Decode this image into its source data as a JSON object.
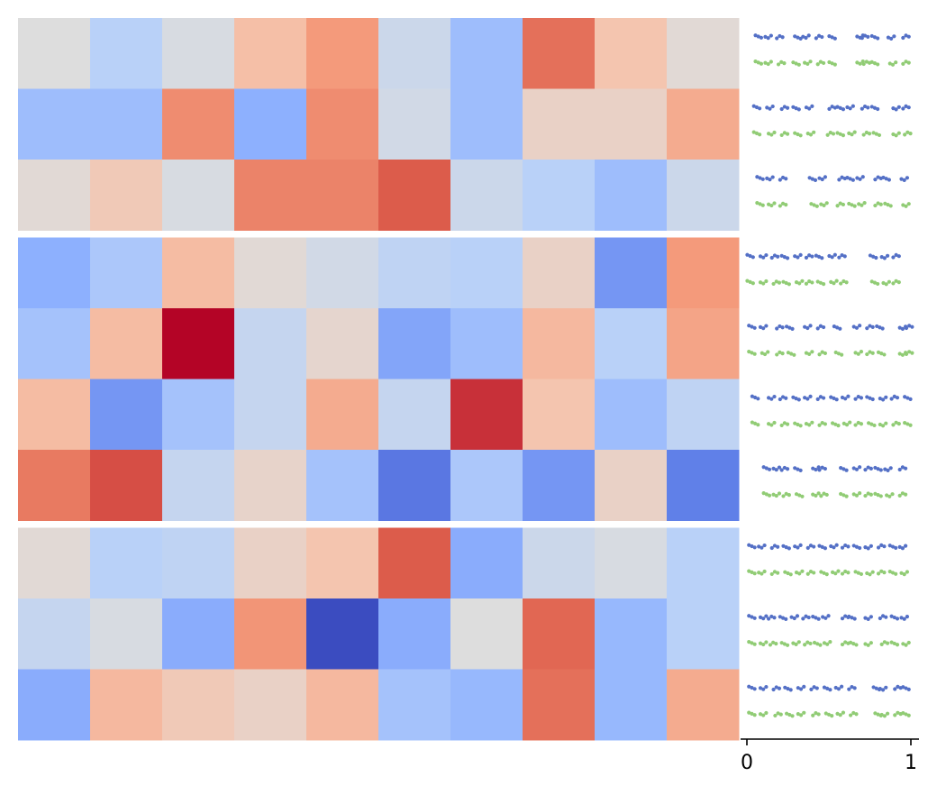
{
  "chart_data": {
    "type": "heatmap",
    "title": "",
    "xlabel": "",
    "ylabel": "",
    "colormap": "coolwarm",
    "color_range": [
      0,
      1
    ],
    "legend": "none",
    "grid": false,
    "groups": [
      {
        "rows": [
          [
            0.5,
            0.38,
            0.48,
            0.64,
            0.75,
            0.44,
            0.3,
            0.84,
            0.62,
            0.52
          ],
          [
            0.3,
            0.3,
            0.78,
            0.25,
            0.78,
            0.46,
            0.3,
            0.56,
            0.56,
            0.7
          ],
          [
            0.52,
            0.6,
            0.48,
            0.8,
            0.8,
            0.88,
            0.44,
            0.38,
            0.3,
            0.44
          ]
        ]
      },
      {
        "rows": [
          [
            0.25,
            0.34,
            0.65,
            0.52,
            0.46,
            0.4,
            0.38,
            0.56,
            0.18,
            0.75
          ],
          [
            0.32,
            0.65,
            1.0,
            0.42,
            0.54,
            0.22,
            0.3,
            0.66,
            0.38,
            0.72
          ],
          [
            0.65,
            0.18,
            0.32,
            0.42,
            0.7,
            0.42,
            0.94,
            0.62,
            0.3,
            0.4
          ],
          [
            0.82,
            0.9,
            0.42,
            0.55,
            0.32,
            0.1,
            0.34,
            0.18,
            0.56,
            0.12
          ]
        ]
      },
      {
        "rows": [
          [
            0.52,
            0.38,
            0.4,
            0.56,
            0.62,
            0.88,
            0.24,
            0.44,
            0.48,
            0.38
          ],
          [
            0.42,
            0.48,
            0.24,
            0.76,
            0.0,
            0.24,
            0.5,
            0.86,
            0.28,
            0.38
          ],
          [
            0.24,
            0.66,
            0.6,
            0.56,
            0.66,
            0.32,
            0.28,
            0.84,
            0.28,
            0.7
          ]
        ]
      }
    ],
    "strip_panel": {
      "type": "scatter",
      "xlim": [
        0,
        1
      ],
      "xticks": [
        "0",
        "1"
      ],
      "series_colors": [
        "#5470c6",
        "#91cc75"
      ],
      "rows": [
        [
          [
            0.07,
            0.13,
            0.2,
            0.31,
            0.36,
            0.44,
            0.52,
            0.69,
            0.72,
            0.78,
            0.88,
            0.97
          ],
          [
            0.07,
            0.13,
            0.21,
            0.3,
            0.37,
            0.45,
            0.52,
            0.69,
            0.73,
            0.78,
            0.89,
            0.97
          ]
        ],
        [
          [
            0.06,
            0.14,
            0.23,
            0.3,
            0.38,
            0.52,
            0.57,
            0.63,
            0.72,
            0.78,
            0.91,
            0.97
          ],
          [
            0.06,
            0.15,
            0.23,
            0.31,
            0.39,
            0.51,
            0.57,
            0.64,
            0.73,
            0.79,
            0.91,
            0.98
          ]
        ],
        [
          [
            0.08,
            0.14,
            0.22,
            0.4,
            0.46,
            0.58,
            0.63,
            0.69,
            0.8,
            0.85,
            0.96
          ],
          [
            0.08,
            0.15,
            0.22,
            0.41,
            0.47,
            0.57,
            0.64,
            0.7,
            0.8,
            0.86,
            0.97
          ]
        ],
        [
          [
            0.02,
            0.1,
            0.17,
            0.23,
            0.31,
            0.38,
            0.44,
            0.52,
            0.58,
            0.77,
            0.84,
            0.91
          ],
          [
            0.02,
            0.1,
            0.18,
            0.24,
            0.32,
            0.38,
            0.45,
            0.53,
            0.59,
            0.78,
            0.85,
            0.91
          ]
        ],
        [
          [
            0.03,
            0.1,
            0.2,
            0.26,
            0.37,
            0.45,
            0.55,
            0.67,
            0.75,
            0.81,
            0.95,
            0.99
          ],
          [
            0.03,
            0.11,
            0.2,
            0.27,
            0.38,
            0.46,
            0.56,
            0.68,
            0.75,
            0.82,
            0.95,
            0.99
          ]
        ],
        [
          [
            0.05,
            0.15,
            0.22,
            0.3,
            0.37,
            0.45,
            0.53,
            0.6,
            0.68,
            0.75,
            0.83,
            0.9,
            0.98
          ],
          [
            0.05,
            0.15,
            0.23,
            0.31,
            0.38,
            0.46,
            0.54,
            0.61,
            0.68,
            0.76,
            0.83,
            0.91,
            0.98
          ]
        ],
        [
          [
            0.12,
            0.18,
            0.23,
            0.31,
            0.42,
            0.46,
            0.59,
            0.67,
            0.74,
            0.8,
            0.86,
            0.95
          ],
          [
            0.12,
            0.18,
            0.24,
            0.32,
            0.42,
            0.47,
            0.59,
            0.67,
            0.74,
            0.8,
            0.87,
            0.95
          ]
        ],
        [
          [
            0.03,
            0.09,
            0.17,
            0.24,
            0.31,
            0.39,
            0.46,
            0.53,
            0.6,
            0.67,
            0.74,
            0.82,
            0.89,
            0.95
          ],
          [
            0.03,
            0.09,
            0.17,
            0.25,
            0.32,
            0.39,
            0.47,
            0.54,
            0.6,
            0.68,
            0.75,
            0.82,
            0.89,
            0.96
          ]
        ],
        [
          [
            0.03,
            0.1,
            0.15,
            0.22,
            0.29,
            0.36,
            0.42,
            0.48,
            0.6,
            0.64,
            0.74,
            0.83,
            0.9,
            0.96
          ],
          [
            0.03,
            0.1,
            0.16,
            0.23,
            0.3,
            0.37,
            0.43,
            0.49,
            0.6,
            0.65,
            0.74,
            0.84,
            0.9,
            0.97
          ]
        ],
        [
          [
            0.03,
            0.1,
            0.18,
            0.25,
            0.33,
            0.41,
            0.49,
            0.56,
            0.64,
            0.79,
            0.83,
            0.92,
            0.97
          ],
          [
            0.03,
            0.1,
            0.19,
            0.26,
            0.33,
            0.42,
            0.5,
            0.57,
            0.65,
            0.8,
            0.84,
            0.92,
            0.97
          ]
        ]
      ]
    }
  }
}
